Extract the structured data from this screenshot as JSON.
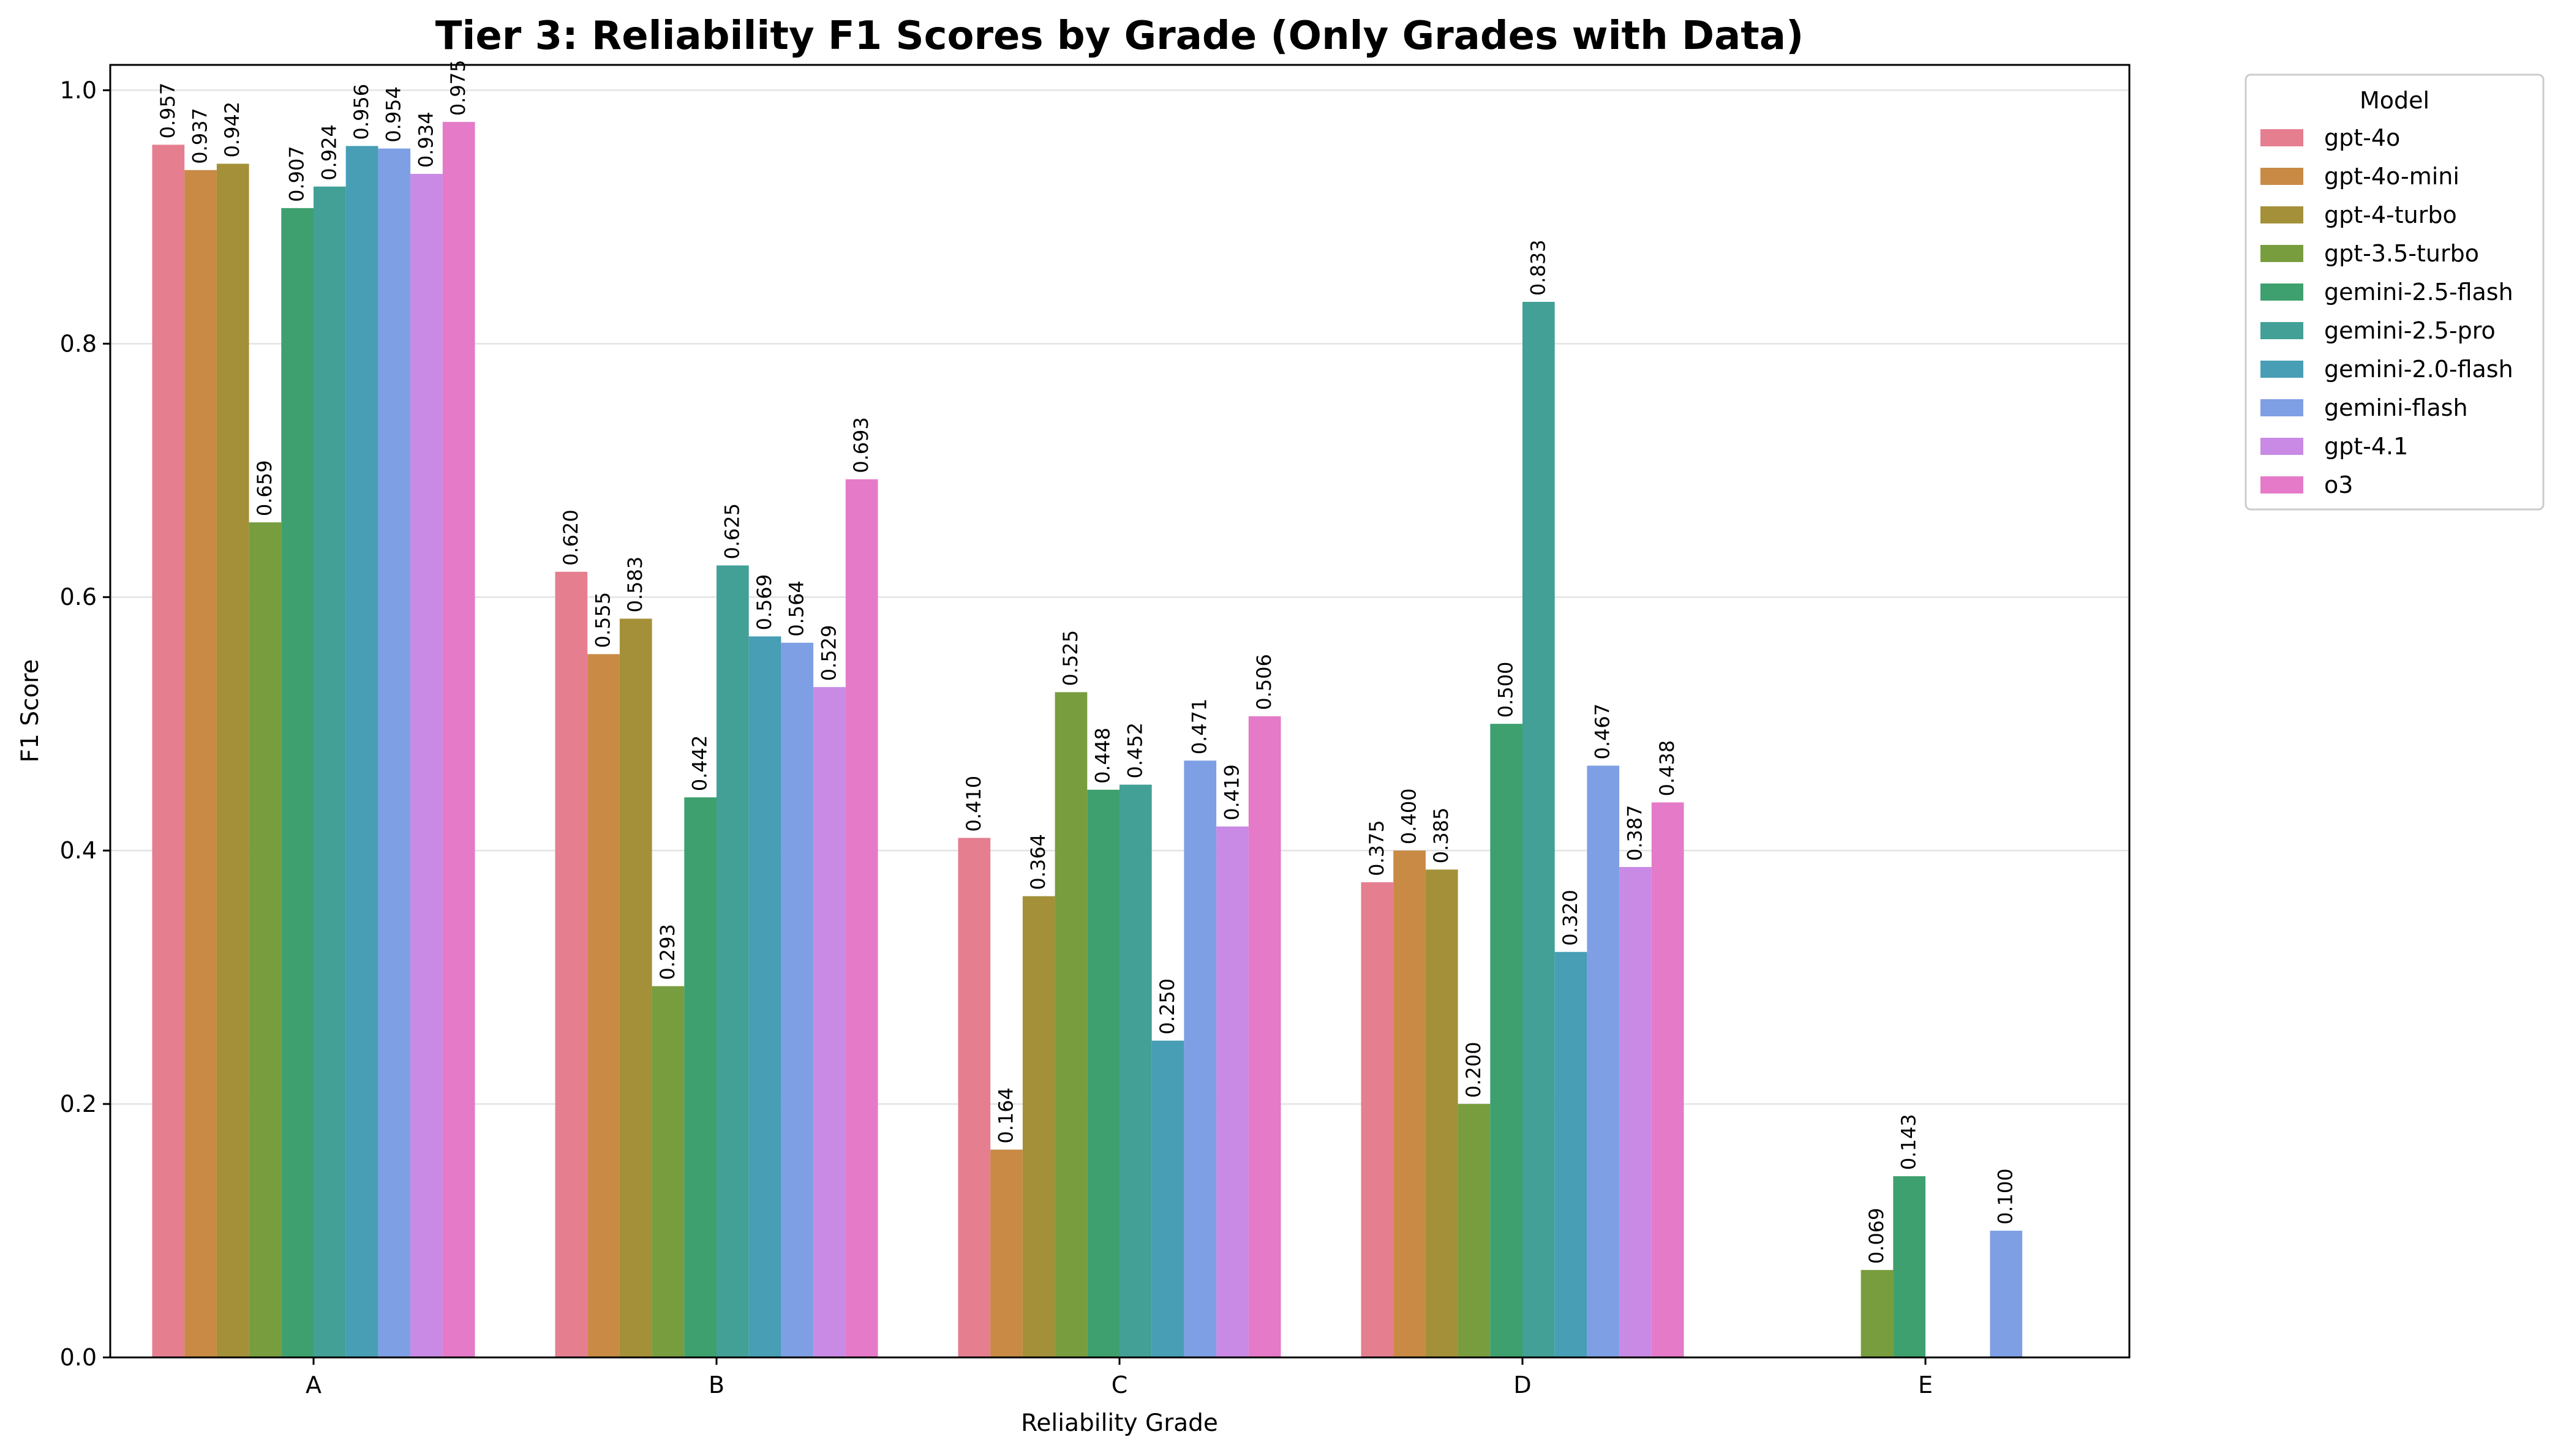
{
  "chart_data": {
    "type": "bar",
    "title": "Tier 3: Reliability F1 Scores by Grade (Only Grades with Data)",
    "xlabel": "Reliability Grade",
    "ylabel": "F1 Score",
    "ylim": [
      0,
      1.02
    ],
    "yticks": [
      "0.0",
      "0.2",
      "0.4",
      "0.6",
      "0.8",
      "1.0"
    ],
    "grid": "horizontal",
    "legend_title": "Model",
    "legend_position": "outside-top-right",
    "categories": [
      "A",
      "B",
      "C",
      "D",
      "E"
    ],
    "series": [
      {
        "name": "gpt-4o",
        "color": "#e57e8f",
        "values": [
          0.957,
          0.62,
          0.41,
          0.375,
          null
        ],
        "labels": [
          "0.957",
          "0.620",
          "0.410",
          "0.375",
          null
        ]
      },
      {
        "name": "gpt-4o-mini",
        "color": "#c88a45",
        "values": [
          0.937,
          0.555,
          0.164,
          0.4,
          null
        ],
        "labels": [
          "0.937",
          "0.555",
          "0.164",
          "0.400",
          null
        ]
      },
      {
        "name": "gpt-4-turbo",
        "color": "#a39039",
        "values": [
          0.942,
          0.583,
          0.364,
          0.385,
          null
        ],
        "labels": [
          "0.942",
          "0.583",
          "0.364",
          "0.385",
          null
        ]
      },
      {
        "name": "gpt-3.5-turbo",
        "color": "#789d3e",
        "values": [
          0.659,
          0.293,
          0.525,
          0.2,
          0.069
        ],
        "labels": [
          "0.659",
          "0.293",
          "0.525",
          "0.200",
          "0.069"
        ]
      },
      {
        "name": "gemini-2.5-flash",
        "color": "#3ea06e",
        "values": [
          0.907,
          0.442,
          0.448,
          0.5,
          0.143
        ],
        "labels": [
          "0.907",
          "0.442",
          "0.448",
          "0.500",
          "0.143"
        ]
      },
      {
        "name": "gemini-2.5-pro",
        "color": "#42a096",
        "values": [
          0.924,
          0.625,
          0.452,
          0.833,
          null
        ],
        "labels": [
          "0.924",
          "0.625",
          "0.452",
          "0.833",
          null
        ]
      },
      {
        "name": "gemini-2.0-flash",
        "color": "#479eb5",
        "values": [
          0.956,
          0.569,
          0.25,
          0.32,
          null
        ],
        "labels": [
          "0.956",
          "0.569",
          "0.250",
          "0.320",
          null
        ]
      },
      {
        "name": "gemini-flash",
        "color": "#7e9fe4",
        "values": [
          0.954,
          0.564,
          0.471,
          0.467,
          0.1
        ],
        "labels": [
          "0.954",
          "0.564",
          "0.471",
          "0.467",
          "0.100"
        ]
      },
      {
        "name": "gpt-4.1",
        "color": "#c88ae4",
        "values": [
          0.934,
          0.529,
          0.419,
          0.387,
          null
        ],
        "labels": [
          "0.934",
          "0.529",
          "0.419",
          "0.387",
          null
        ]
      },
      {
        "name": "o3",
        "color": "#e47ac8",
        "values": [
          0.975,
          0.693,
          0.506,
          0.438,
          null
        ],
        "labels": [
          "0.975",
          "0.693",
          "0.506",
          "0.438",
          null
        ]
      }
    ]
  }
}
